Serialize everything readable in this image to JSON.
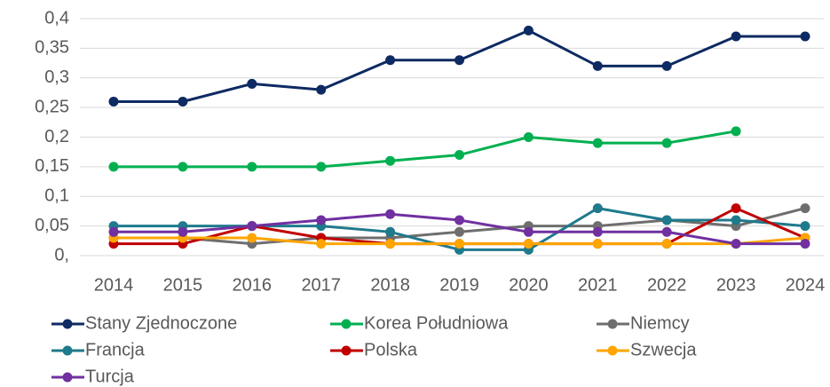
{
  "chart_data": {
    "type": "line",
    "categories": [
      "2014",
      "2015",
      "2016",
      "2017",
      "2018",
      "2019",
      "2020",
      "2021",
      "2022",
      "2023",
      "2024"
    ],
    "series": [
      {
        "name": "Stany Zjednoczone",
        "color": "#0e2a62",
        "values": [
          0.26,
          0.26,
          0.29,
          0.28,
          0.33,
          0.33,
          0.38,
          0.32,
          0.32,
          0.37,
          0.37
        ]
      },
      {
        "name": "Korea Południowa",
        "color": "#00b050",
        "values": [
          0.15,
          0.15,
          0.15,
          0.15,
          0.16,
          0.17,
          0.2,
          0.19,
          0.19,
          0.21,
          null
        ]
      },
      {
        "name": "Niemcy",
        "color": "#6e6e6e",
        "values": [
          0.03,
          0.03,
          0.02,
          0.03,
          0.03,
          0.04,
          0.05,
          0.05,
          0.06,
          0.05,
          0.08
        ]
      },
      {
        "name": "Francja",
        "color": "#1f7a8c",
        "values": [
          0.05,
          0.05,
          0.05,
          0.05,
          0.04,
          0.01,
          0.01,
          0.08,
          0.06,
          0.06,
          0.05
        ]
      },
      {
        "name": "Polska",
        "color": "#c00000",
        "values": [
          0.02,
          0.02,
          0.05,
          0.03,
          0.02,
          0.02,
          0.02,
          0.02,
          0.02,
          0.08,
          0.03
        ]
      },
      {
        "name": "Szwecja",
        "color": "#ffa500",
        "values": [
          0.03,
          0.03,
          0.03,
          0.02,
          0.02,
          0.02,
          0.02,
          0.02,
          0.02,
          0.02,
          0.03
        ]
      },
      {
        "name": "Turcja",
        "color": "#7030a0",
        "values": [
          0.04,
          0.04,
          0.05,
          0.06,
          0.07,
          0.06,
          0.04,
          0.04,
          0.04,
          0.02,
          0.02
        ]
      }
    ],
    "ylim": [
      0,
      0.4
    ],
    "yticks": [
      {
        "value": 0,
        "label": "0,"
      },
      {
        "value": 0.05,
        "label": "0,05"
      },
      {
        "value": 0.1,
        "label": "0,1"
      },
      {
        "value": 0.15,
        "label": "0,15"
      },
      {
        "value": 0.2,
        "label": "0,2"
      },
      {
        "value": 0.25,
        "label": "0,25"
      },
      {
        "value": 0.3,
        "label": "0,3"
      },
      {
        "value": 0.35,
        "label": "0,35"
      },
      {
        "value": 0.4,
        "label": "0,4"
      }
    ],
    "grid": true
  }
}
